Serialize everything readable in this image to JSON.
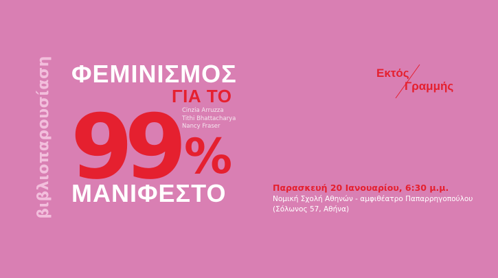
{
  "colors": {
    "background": "#d97fb3",
    "accent": "#e5202f",
    "light": "#f2bedc"
  },
  "label_vertical": "βιβλιοπαρουσίαση",
  "book": {
    "title_line1": "ΦΕΜΙΝΙΣΜΟΣ",
    "title_line2": "ΓΙΑ ΤΟ",
    "number": "99",
    "percent": "%",
    "title_line4": "ΜΑΝΙΦΕΣΤΟ",
    "authors": [
      "Cinzia Arruzza",
      "Tithi Bhattacharya",
      "Nancy Fraser"
    ]
  },
  "logo": {
    "line1": "Εκτός",
    "line2": "Γραμμής"
  },
  "event": {
    "date": "Παρασκευή 20 Ιανουαρίου, 6:30 μ.μ.",
    "venue": "Νομική Σχολή Αθηνών - αμφιθέατρο Παπαρρηγοπούλου",
    "address": "(Σόλωνος 57, Αθήνα)"
  }
}
